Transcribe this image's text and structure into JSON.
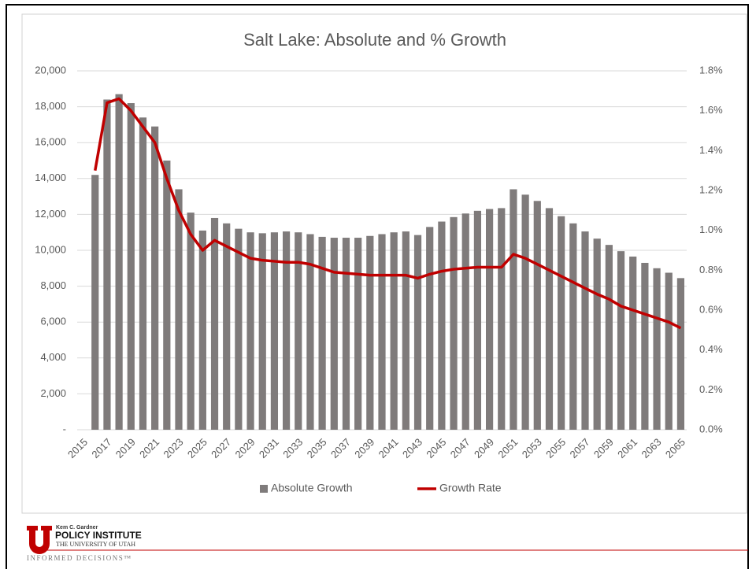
{
  "chart_data": {
    "type": "bar_line",
    "title": "Salt Lake: Absolute and % Growth",
    "categories": [
      "2015",
      null,
      "2017",
      null,
      "2019",
      null,
      "2021",
      null,
      "2023",
      null,
      "2025",
      null,
      "2027",
      null,
      "2029",
      null,
      "2031",
      null,
      "2033",
      null,
      "2035",
      null,
      "2037",
      null,
      "2039",
      null,
      "2041",
      null,
      "2043",
      null,
      "2045",
      null,
      "2047",
      null,
      "2049",
      null,
      "2051",
      null,
      "2053",
      null,
      "2055",
      null,
      "2057",
      null,
      "2059",
      null,
      "2061",
      null,
      "2063",
      null,
      "2065"
    ],
    "series": [
      {
        "name": "Absolute Growth",
        "type": "bar",
        "color": "#7f7b7b",
        "values": [
          null,
          14200,
          18400,
          18700,
          18200,
          17400,
          16900,
          15000,
          13400,
          12100,
          11100,
          11800,
          11500,
          11200,
          11000,
          10950,
          11000,
          11050,
          11000,
          10900,
          10750,
          10700,
          10700,
          10700,
          10800,
          10900,
          11000,
          11050,
          10850,
          11300,
          11600,
          11850,
          12050,
          12200,
          12300,
          12350,
          13400,
          13100,
          12750,
          12350,
          11900,
          11500,
          11050,
          10650,
          10300,
          9950,
          9650,
          9300,
          9000,
          8750,
          8450
        ]
      },
      {
        "name": "Growth Rate",
        "type": "line",
        "axis": "y2",
        "color": "#c00000",
        "values": [
          null,
          1.3,
          1.64,
          1.66,
          1.6,
          1.52,
          1.44,
          1.26,
          1.1,
          0.98,
          0.9,
          0.95,
          0.92,
          0.89,
          0.86,
          0.85,
          0.845,
          0.84,
          0.84,
          0.83,
          0.81,
          0.79,
          0.785,
          0.78,
          0.775,
          0.775,
          0.775,
          0.775,
          0.76,
          0.78,
          0.795,
          0.805,
          0.81,
          0.815,
          0.815,
          0.815,
          0.88,
          0.86,
          0.83,
          0.8,
          0.77,
          0.74,
          0.71,
          0.68,
          0.655,
          0.62,
          0.6,
          0.58,
          0.56,
          0.54,
          0.51
        ]
      }
    ],
    "ylim": [
      0,
      20000
    ],
    "yticks": [
      {
        "value": 0,
        "label": "-"
      },
      {
        "value": 2000,
        "label": "2,000"
      },
      {
        "value": 4000,
        "label": "4,000"
      },
      {
        "value": 6000,
        "label": "6,000"
      },
      {
        "value": 8000,
        "label": "8,000"
      },
      {
        "value": 10000,
        "label": "10,000"
      },
      {
        "value": 12000,
        "label": "12,000"
      },
      {
        "value": 14000,
        "label": "14,000"
      },
      {
        "value": 16000,
        "label": "16,000"
      },
      {
        "value": 18000,
        "label": "18,000"
      },
      {
        "value": 20000,
        "label": "20,000"
      }
    ],
    "y2lim": [
      0,
      1.8
    ],
    "y2ticks": [
      {
        "value": 0,
        "label": "0.0%"
      },
      {
        "value": 0.2,
        "label": "0.2%"
      },
      {
        "value": 0.4,
        "label": "0.4%"
      },
      {
        "value": 0.6,
        "label": "0.6%"
      },
      {
        "value": 0.8,
        "label": "0.8%"
      },
      {
        "value": 1.0,
        "label": "1.0%"
      },
      {
        "value": 1.2,
        "label": "1.2%"
      },
      {
        "value": 1.4,
        "label": "1.4%"
      },
      {
        "value": 1.6,
        "label": "1.6%"
      },
      {
        "value": 1.8,
        "label": "1.8%"
      }
    ],
    "grid": true,
    "legend": "bottom"
  },
  "logo": {
    "line1": "Kem C. Gardner",
    "line2": "POLICY INSTITUTE",
    "line3": "THE UNIVERSITY OF UTAH",
    "tagline": "INFORMED DECISIONS™"
  }
}
